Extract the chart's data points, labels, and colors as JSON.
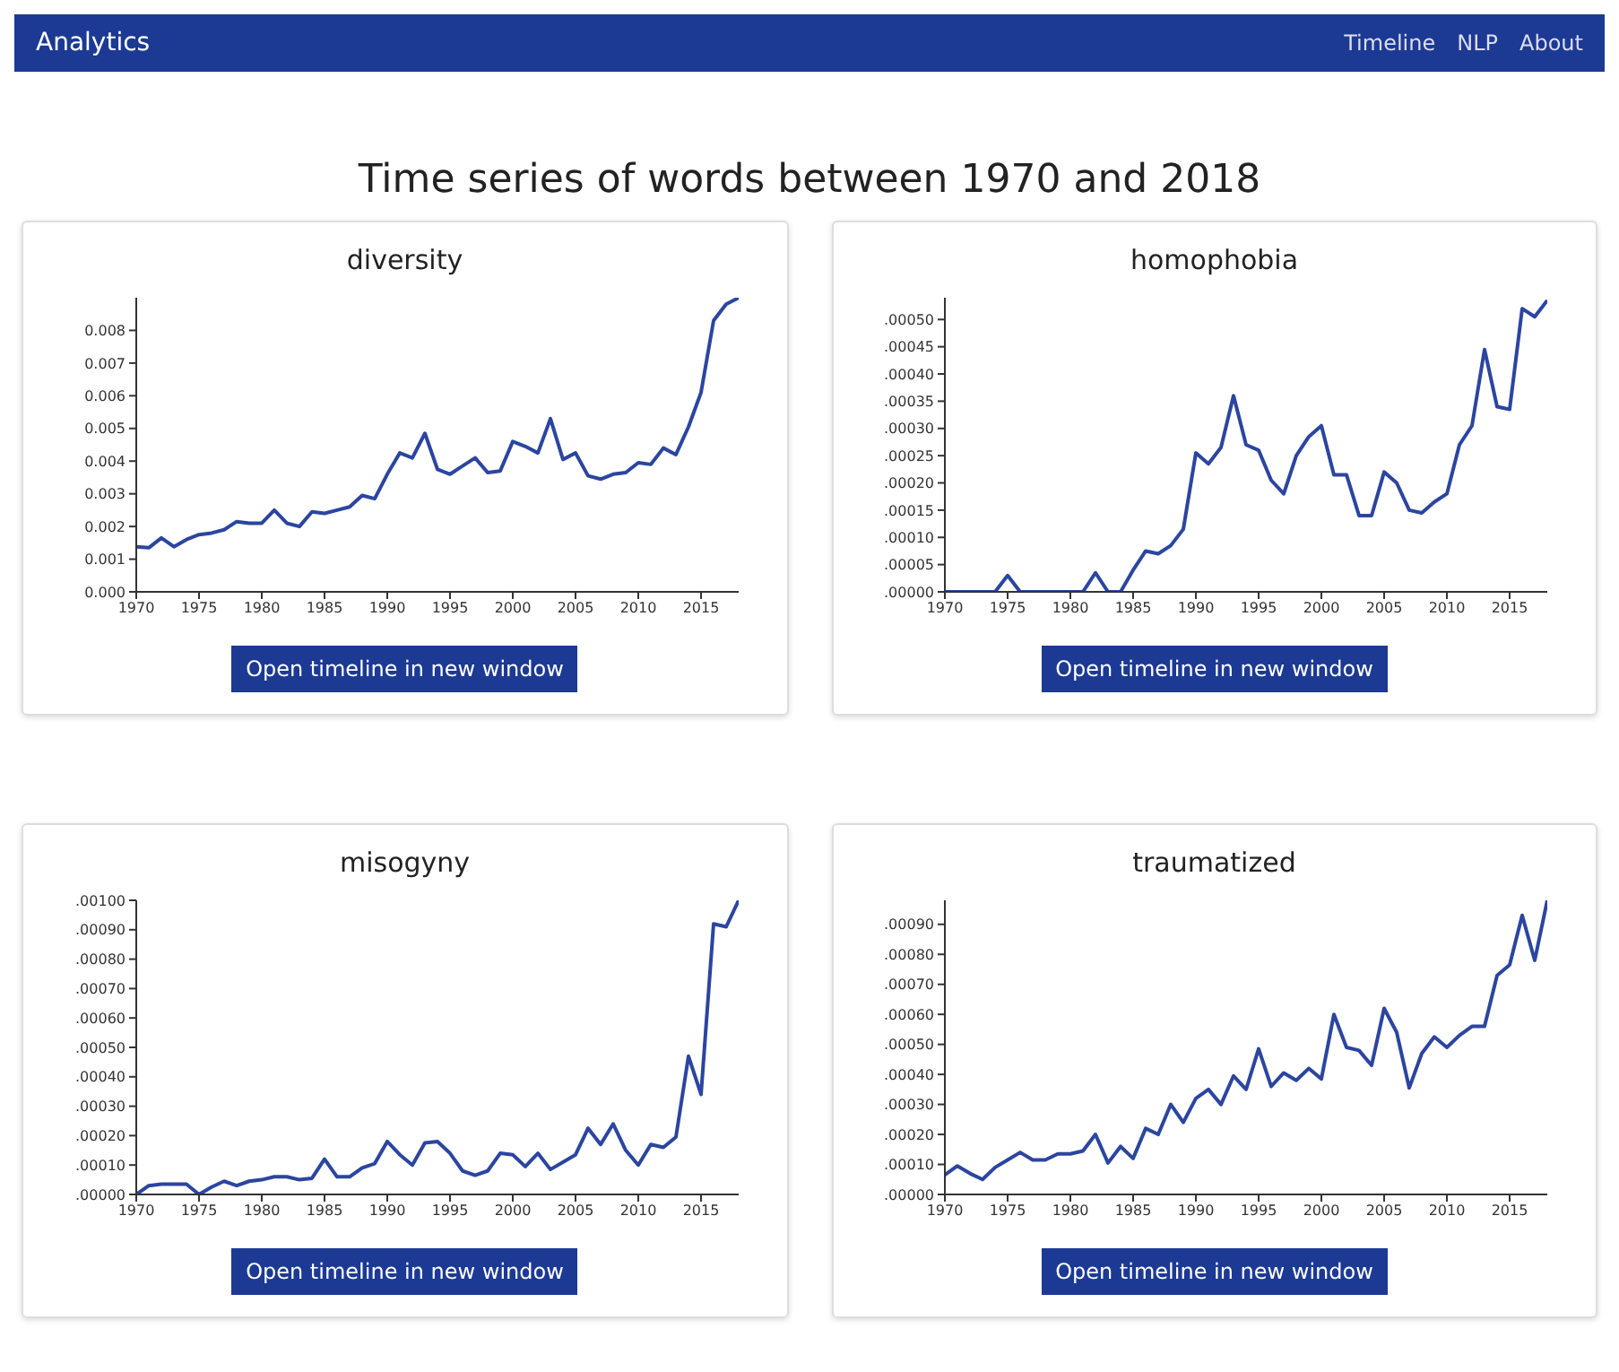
{
  "chart_data": [
    {
      "type": "line",
      "title": "diversity",
      "annotations": [
        "Analytics",
        "Timeline",
        "NLP",
        "About",
        "Time series of words between 1970 and 2018",
        "Open timeline in new window"
      ],
      "x": [
        1970,
        1971,
        1972,
        1973,
        1974,
        1975,
        1976,
        1977,
        1978,
        1979,
        1980,
        1981,
        1982,
        1983,
        1984,
        1985,
        1986,
        1987,
        1988,
        1989,
        1990,
        1991,
        1992,
        1993,
        1994,
        1995,
        1996,
        1997,
        1998,
        1999,
        2000,
        2001,
        2002,
        2003,
        2004,
        2005,
        2006,
        2007,
        2008,
        2009,
        2010,
        2011,
        2012,
        2013,
        2014,
        2015,
        2016,
        2017,
        2018
      ],
      "series": [
        {
          "color": "#2b45a0",
          "values": [
            0.00138,
            0.00135,
            0.00165,
            0.00138,
            0.0016,
            0.00175,
            0.0018,
            0.0019,
            0.00215,
            0.0021,
            0.0021,
            0.0025,
            0.0021,
            0.002,
            0.00245,
            0.0024,
            0.0025,
            0.0026,
            0.00295,
            0.00285,
            0.0036,
            0.00425,
            0.0041,
            0.00485,
            0.00375,
            0.0036,
            0.00385,
            0.0041,
            0.00365,
            0.0037,
            0.0046,
            0.00445,
            0.00425,
            0.0053,
            0.00405,
            0.00425,
            0.00355,
            0.00345,
            0.0036,
            0.00365,
            0.00395,
            0.0039,
            0.0044,
            0.0042,
            0.00505,
            0.0061,
            0.0083,
            0.0088,
            0.009
          ]
        }
      ],
      "xlim": [
        1970,
        2018
      ],
      "xticks": [
        1970,
        1975,
        1980,
        1985,
        1990,
        1995,
        2000,
        2005,
        2010,
        2015
      ],
      "ylim": [
        0,
        0.009
      ],
      "yticks": [
        {
          "value": 0,
          "label": "0.000"
        },
        {
          "value": 0.001,
          "label": "0.001"
        },
        {
          "value": 0.002,
          "label": "0.002"
        },
        {
          "value": 0.003,
          "label": "0.003"
        },
        {
          "value": 0.004,
          "label": "0.004"
        },
        {
          "value": 0.005,
          "label": "0.005"
        },
        {
          "value": 0.006,
          "label": "0.006"
        },
        {
          "value": 0.007,
          "label": "0.007"
        },
        {
          "value": 0.008,
          "label": "0.008"
        }
      ]
    },
    {
      "type": "line",
      "title": "homophobia",
      "annotations": [
        "Open timeline in new window"
      ],
      "x": [
        1970,
        1971,
        1972,
        1973,
        1974,
        1975,
        1976,
        1977,
        1978,
        1979,
        1980,
        1981,
        1982,
        1983,
        1984,
        1985,
        1986,
        1987,
        1988,
        1989,
        1990,
        1991,
        1992,
        1993,
        1994,
        1995,
        1996,
        1997,
        1998,
        1999,
        2000,
        2001,
        2002,
        2003,
        2004,
        2005,
        2006,
        2007,
        2008,
        2009,
        2010,
        2011,
        2012,
        2013,
        2014,
        2015,
        2016,
        2017,
        2018
      ],
      "series": [
        {
          "color": "#2b45a0",
          "values": [
            0,
            0,
            0,
            0,
            0,
            3e-05,
            0,
            0,
            0,
            0,
            0,
            0,
            3.5e-05,
            0,
            0,
            4e-05,
            7.5e-05,
            7e-05,
            8.5e-05,
            0.000115,
            0.000255,
            0.000235,
            0.000265,
            0.00036,
            0.00027,
            0.00026,
            0.000205,
            0.00018,
            0.00025,
            0.000285,
            0.000305,
            0.000215,
            0.000215,
            0.00014,
            0.00014,
            0.00022,
            0.0002,
            0.00015,
            0.000145,
            0.000165,
            0.00018,
            0.00027,
            0.000305,
            0.000445,
            0.00034,
            0.000335,
            0.00052,
            0.000505,
            0.000535
          ]
        }
      ],
      "xlim": [
        1970,
        2018
      ],
      "xticks": [
        1970,
        1975,
        1980,
        1985,
        1990,
        1995,
        2000,
        2005,
        2010,
        2015
      ],
      "ylim": [
        0,
        0.00054
      ],
      "yticks": [
        {
          "value": 0,
          "label": ".00000"
        },
        {
          "value": 5e-05,
          "label": ".00005"
        },
        {
          "value": 0.0001,
          "label": ".00010"
        },
        {
          "value": 0.00015,
          "label": ".00015"
        },
        {
          "value": 0.0002,
          "label": ".00020"
        },
        {
          "value": 0.00025,
          "label": ".00025"
        },
        {
          "value": 0.0003,
          "label": ".00030"
        },
        {
          "value": 0.00035,
          "label": ".00035"
        },
        {
          "value": 0.0004,
          "label": ".00040"
        },
        {
          "value": 0.00045,
          "label": ".00045"
        },
        {
          "value": 0.0005,
          "label": ".00050"
        }
      ]
    },
    {
      "type": "line",
      "title": "misogyny",
      "annotations": [
        "Open timeline in new window"
      ],
      "x": [
        1970,
        1971,
        1972,
        1973,
        1974,
        1975,
        1976,
        1977,
        1978,
        1979,
        1980,
        1981,
        1982,
        1983,
        1984,
        1985,
        1986,
        1987,
        1988,
        1989,
        1990,
        1991,
        1992,
        1993,
        1994,
        1995,
        1996,
        1997,
        1998,
        1999,
        2000,
        2001,
        2002,
        2003,
        2004,
        2005,
        2006,
        2007,
        2008,
        2009,
        2010,
        2011,
        2012,
        2013,
        2014,
        2015,
        2016,
        2017,
        2018
      ],
      "series": [
        {
          "color": "#2b45a0",
          "values": [
            0,
            3e-05,
            3.5e-05,
            3.5e-05,
            3.5e-05,
            0,
            2.5e-05,
            4.5e-05,
            3e-05,
            4.5e-05,
            5e-05,
            6e-05,
            6e-05,
            5e-05,
            5.5e-05,
            0.00012,
            6e-05,
            6e-05,
            9e-05,
            0.000105,
            0.00018,
            0.000135,
            0.0001,
            0.000175,
            0.00018,
            0.00014,
            8e-05,
            6.5e-05,
            8e-05,
            0.00014,
            0.000135,
            9.5e-05,
            0.00014,
            8.5e-05,
            0.00011,
            0.000135,
            0.000225,
            0.00017,
            0.00024,
            0.00015,
            0.0001,
            0.00017,
            0.00016,
            0.000195,
            0.00047,
            0.00034,
            0.00092,
            0.00091,
            0.001
          ]
        }
      ],
      "xlim": [
        1970,
        2018
      ],
      "xticks": [
        1970,
        1975,
        1980,
        1985,
        1990,
        1995,
        2000,
        2005,
        2010,
        2015
      ],
      "ylim": [
        0,
        0.001
      ],
      "yticks": [
        {
          "value": 0,
          "label": ".00000"
        },
        {
          "value": 0.0001,
          "label": ".00010"
        },
        {
          "value": 0.0002,
          "label": ".00020"
        },
        {
          "value": 0.0003,
          "label": ".00030"
        },
        {
          "value": 0.0004,
          "label": ".00040"
        },
        {
          "value": 0.0005,
          "label": ".00050"
        },
        {
          "value": 0.0006,
          "label": ".00060"
        },
        {
          "value": 0.0007,
          "label": ".00070"
        },
        {
          "value": 0.0008,
          "label": ".00080"
        },
        {
          "value": 0.0009,
          "label": ".00090"
        },
        {
          "value": 0.001,
          "label": ".00100"
        }
      ]
    },
    {
      "type": "line",
      "title": "traumatized",
      "annotations": [
        "Open timeline in new window"
      ],
      "x": [
        1970,
        1971,
        1972,
        1973,
        1974,
        1975,
        1976,
        1977,
        1978,
        1979,
        1980,
        1981,
        1982,
        1983,
        1984,
        1985,
        1986,
        1987,
        1988,
        1989,
        1990,
        1991,
        1992,
        1993,
        1994,
        1995,
        1996,
        1997,
        1998,
        1999,
        2000,
        2001,
        2002,
        2003,
        2004,
        2005,
        2006,
        2007,
        2008,
        2009,
        2010,
        2011,
        2012,
        2013,
        2014,
        2015,
        2016,
        2017,
        2018
      ],
      "series": [
        {
          "color": "#2b45a0",
          "values": [
            6.5e-05,
            9.5e-05,
            7e-05,
            5e-05,
            9e-05,
            0.000115,
            0.00014,
            0.000115,
            0.000115,
            0.000135,
            0.000135,
            0.000145,
            0.0002,
            0.000105,
            0.00016,
            0.00012,
            0.00022,
            0.0002,
            0.0003,
            0.00024,
            0.00032,
            0.00035,
            0.0003,
            0.000395,
            0.00035,
            0.000485,
            0.00036,
            0.000405,
            0.00038,
            0.00042,
            0.000385,
            0.0006,
            0.00049,
            0.00048,
            0.00043,
            0.00062,
            0.00054,
            0.000355,
            0.00047,
            0.000525,
            0.00049,
            0.00053,
            0.00056,
            0.00056,
            0.00073,
            0.000765,
            0.00093,
            0.00078,
            0.00098
          ]
        }
      ],
      "xlim": [
        1970,
        2018
      ],
      "xticks": [
        1970,
        1975,
        1980,
        1985,
        1990,
        1995,
        2000,
        2005,
        2010,
        2015
      ],
      "ylim": [
        0,
        0.00098
      ],
      "yticks": [
        {
          "value": 0,
          "label": ".00000"
        },
        {
          "value": 0.0001,
          "label": ".00010"
        },
        {
          "value": 0.0002,
          "label": ".00020"
        },
        {
          "value": 0.0003,
          "label": ".00030"
        },
        {
          "value": 0.0004,
          "label": ".00040"
        },
        {
          "value": 0.0005,
          "label": ".00050"
        },
        {
          "value": 0.0006,
          "label": ".00060"
        },
        {
          "value": 0.0007,
          "label": ".00070"
        },
        {
          "value": 0.0008,
          "label": ".00080"
        },
        {
          "value": 0.0009,
          "label": ".00090"
        }
      ]
    }
  ]
}
